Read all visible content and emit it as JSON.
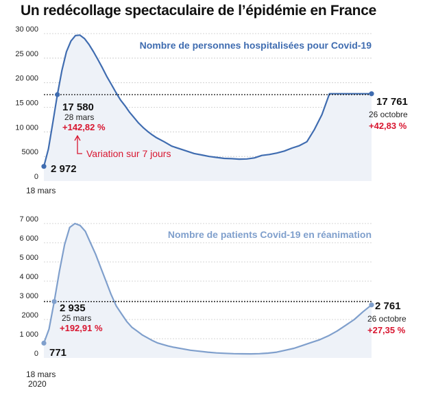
{
  "title": "Un redécollage spectaculaire de l’épidémie en France",
  "chart_data": [
    {
      "type": "area",
      "title": "Nombre de personnes hospitalisées pour Covid-19",
      "color": "#3f6cb0",
      "fill": "#eef2f8",
      "ylim": [
        0,
        30000
      ],
      "yticks": [
        0,
        5000,
        10000,
        15000,
        20000,
        25000,
        30000
      ],
      "ytick_labels": [
        "0",
        "5000",
        "10 000",
        "15 000",
        "20 000",
        "25 000",
        "30 000"
      ],
      "x_start_label": "18 mars",
      "x": [
        0,
        3,
        6,
        9,
        12,
        15,
        18,
        21,
        24,
        27,
        30,
        33,
        36,
        39,
        42,
        45,
        48,
        51,
        54,
        57,
        60,
        63,
        66,
        69,
        72,
        75,
        80,
        85,
        90,
        95,
        100,
        105,
        110,
        115,
        120,
        125,
        130,
        135,
        140,
        145,
        150,
        155,
        160,
        165,
        170,
        175,
        180,
        185,
        190,
        195,
        200,
        205,
        210,
        215,
        218
      ],
      "values": [
        2972,
        6500,
        12000,
        17580,
        22500,
        26300,
        28500,
        29600,
        29700,
        29000,
        27800,
        26300,
        24700,
        23000,
        21200,
        19600,
        18000,
        16500,
        15300,
        14000,
        12900,
        11800,
        10900,
        10100,
        9400,
        8800,
        8000,
        7100,
        6600,
        6100,
        5600,
        5300,
        5000,
        4800,
        4600,
        4550,
        4450,
        4500,
        4700,
        5200,
        5400,
        5700,
        6100,
        6700,
        7200,
        8000,
        10500,
        13500,
        17761,
        17761,
        17761,
        17761,
        17761,
        17761,
        17761
      ],
      "ref_value": 17580,
      "start": {
        "label": "2 972",
        "value": 2972
      },
      "peak_ref": {
        "label": "17 580",
        "date": "28 mars",
        "change": "+142,82 %",
        "value": 17580,
        "x": 9
      },
      "end": {
        "label": "17 761",
        "date": "26 octobre",
        "change": "+42,83 %",
        "value": 17761
      },
      "note": "Variation sur 7 jours"
    },
    {
      "type": "area",
      "title": "Nombre de patients Covid-19 en réanimation",
      "color": "#7f9fcc",
      "fill": "#eef2f8",
      "ylim": [
        0,
        7000
      ],
      "yticks": [
        0,
        1000,
        2000,
        3000,
        4000,
        5000,
        6000,
        7000
      ],
      "ytick_labels": [
        "0",
        "1 000",
        "2000",
        "3 000",
        "4 000",
        "5 000",
        "6 000",
        "7 000"
      ],
      "x_start_label": "18 mars",
      "x_start_label2": "2020",
      "x": [
        0,
        3,
        6,
        9,
        12,
        15,
        18,
        21,
        24,
        27,
        30,
        33,
        36,
        39,
        42,
        45,
        48,
        51,
        54,
        57,
        60,
        63,
        66,
        69,
        72,
        75,
        80,
        85,
        90,
        95,
        100,
        105,
        110,
        115,
        120,
        125,
        130,
        135,
        140,
        145,
        150,
        155,
        160,
        165,
        170,
        175,
        180,
        185,
        190
      ],
      "values": [
        771,
        1500,
        2935,
        4500,
        5900,
        6800,
        7000,
        6900,
        6600,
        6000,
        5400,
        4700,
        4000,
        3300,
        2700,
        2300,
        1900,
        1600,
        1400,
        1200,
        1050,
        900,
        780,
        700,
        620,
        560,
        480,
        400,
        350,
        300,
        260,
        240,
        220,
        215,
        210,
        220,
        250,
        300,
        400,
        500,
        650,
        800,
        950,
        1150,
        1400,
        1700,
        2000,
        2400,
        2761
      ],
      "ref_value": 2935,
      "start": {
        "label": "771",
        "value": 771
      },
      "peak_ref": {
        "label": "2 935",
        "date": "25 mars",
        "change": "+192,91 %",
        "value": 2935,
        "x": 6
      },
      "end": {
        "label": "2 761",
        "date": "26 octobre",
        "change": "+27,35 %",
        "value": 2761
      }
    }
  ]
}
